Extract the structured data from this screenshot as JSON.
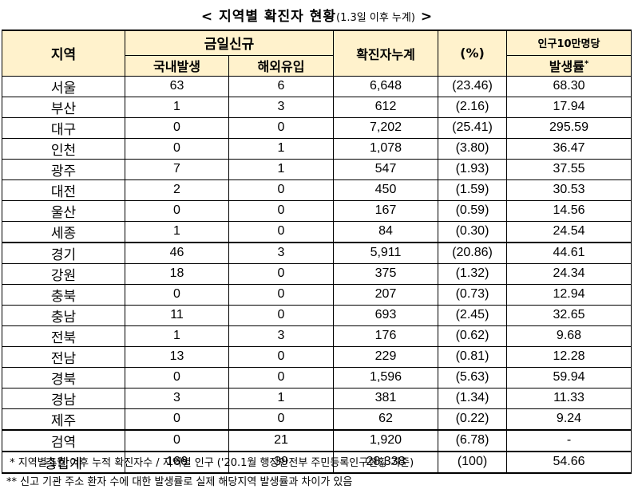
{
  "title": {
    "main": "< 지역별 확진자 현황",
    "sub": "(1.3일 이후 누계)",
    "end": " >"
  },
  "header": {
    "region": "지역",
    "today_new": "금일신규",
    "domestic": "국내발생",
    "overseas": "해외유입",
    "cumulative": "확진자누계",
    "percent": "(%)",
    "rate_line1": "인구10만명당",
    "rate_line2": "발생률",
    "rate_mark": "*"
  },
  "rows": [
    {
      "region": "서울",
      "domestic": "63",
      "overseas": "6",
      "cumulative": "6,648",
      "percent": "(23.46)",
      "rate": "68.30"
    },
    {
      "region": "부산",
      "domestic": "1",
      "overseas": "3",
      "cumulative": "612",
      "percent": "(2.16)",
      "rate": "17.94"
    },
    {
      "region": "대구",
      "domestic": "0",
      "overseas": "0",
      "cumulative": "7,202",
      "percent": "(25.41)",
      "rate": "295.59"
    },
    {
      "region": "인천",
      "domestic": "0",
      "overseas": "1",
      "cumulative": "1,078",
      "percent": "(3.80)",
      "rate": "36.47"
    },
    {
      "region": "광주",
      "domestic": "7",
      "overseas": "1",
      "cumulative": "547",
      "percent": "(1.93)",
      "rate": "37.55"
    },
    {
      "region": "대전",
      "domestic": "2",
      "overseas": "0",
      "cumulative": "450",
      "percent": "(1.59)",
      "rate": "30.53"
    },
    {
      "region": "울산",
      "domestic": "0",
      "overseas": "0",
      "cumulative": "167",
      "percent": "(0.59)",
      "rate": "14.56"
    },
    {
      "region": "세종",
      "domestic": "1",
      "overseas": "0",
      "cumulative": "84",
      "percent": "(0.30)",
      "rate": "24.54"
    },
    {
      "region": "경기",
      "domestic": "46",
      "overseas": "3",
      "cumulative": "5,911",
      "percent": "(20.86)",
      "rate": "44.61"
    },
    {
      "region": "강원",
      "domestic": "18",
      "overseas": "0",
      "cumulative": "375",
      "percent": "(1.32)",
      "rate": "24.34"
    },
    {
      "region": "충북",
      "domestic": "0",
      "overseas": "0",
      "cumulative": "207",
      "percent": "(0.73)",
      "rate": "12.94"
    },
    {
      "region": "충남",
      "domestic": "11",
      "overseas": "0",
      "cumulative": "693",
      "percent": "(2.45)",
      "rate": "32.65"
    },
    {
      "region": "전북",
      "domestic": "1",
      "overseas": "3",
      "cumulative": "176",
      "percent": "(0.62)",
      "rate": "9.68"
    },
    {
      "region": "전남",
      "domestic": "13",
      "overseas": "0",
      "cumulative": "229",
      "percent": "(0.81)",
      "rate": "12.28"
    },
    {
      "region": "경북",
      "domestic": "0",
      "overseas": "0",
      "cumulative": "1,596",
      "percent": "(5.63)",
      "rate": "59.94"
    },
    {
      "region": "경남",
      "domestic": "3",
      "overseas": "1",
      "cumulative": "381",
      "percent": "(1.34)",
      "rate": "11.33"
    },
    {
      "region": "제주",
      "domestic": "0",
      "overseas": "0",
      "cumulative": "62",
      "percent": "(0.22)",
      "rate": "9.24"
    },
    {
      "region": "검역",
      "domestic": "0",
      "overseas": "21",
      "cumulative": "1,920",
      "percent": "(6.78)",
      "rate": "-"
    }
  ],
  "total": {
    "region": "총합계",
    "domestic": "166",
    "overseas": "39",
    "cumulative": "28,338",
    "percent": "(100)",
    "rate": "54.66"
  },
  "notes": [
    " * 지역별 1월 이후 누적 확진자수 / 지역별 인구 ('20.1월 행정안전부 주민등록인구현황 기준)",
    "** 신고 기관 주소 환자 수에 대한 발생률로 실제 해당지역 발생률과 차이가 있음"
  ]
}
